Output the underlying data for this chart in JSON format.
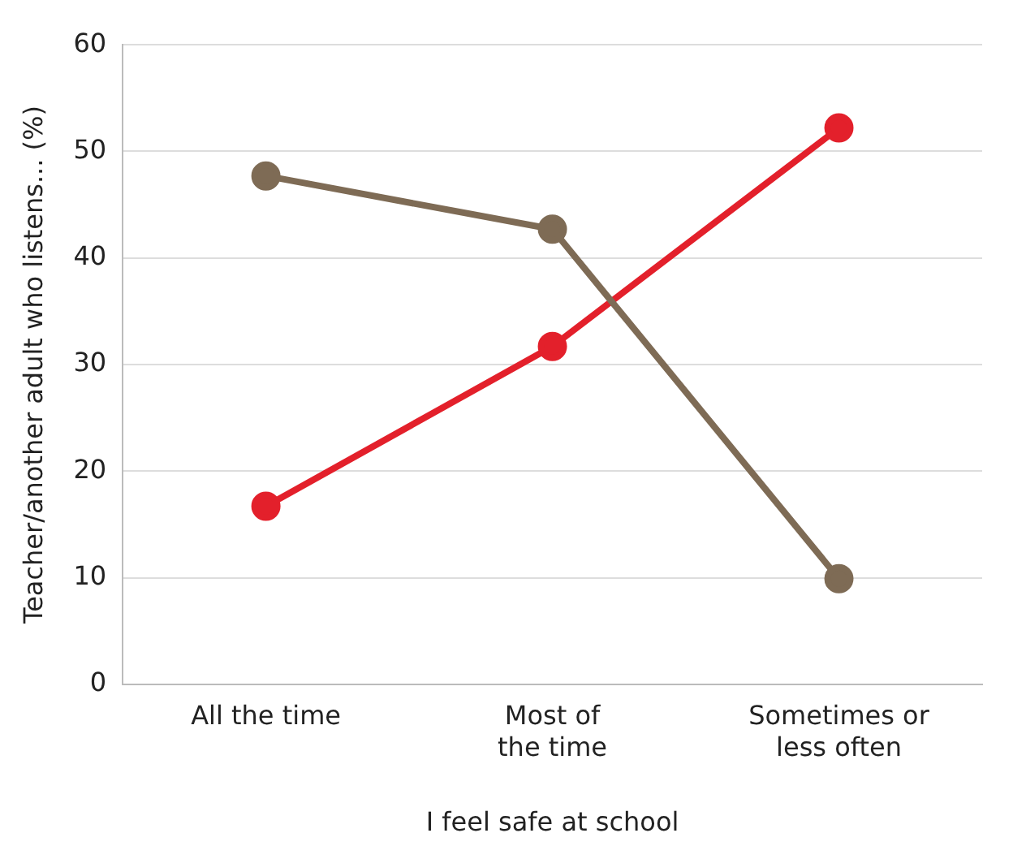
{
  "chart_data": {
    "type": "line",
    "xlabel": "I feel safe at school",
    "ylabel": "Teacher/another adult who listens... (%)",
    "categories": [
      "All the time",
      "Most of\nthe time",
      "Sometimes or\nless often"
    ],
    "series": [
      {
        "color": "#7e6b55",
        "values": [
          47.7,
          42.7,
          9.9
        ]
      },
      {
        "color": "#e3202b",
        "values": [
          16.7,
          31.7,
          52.2
        ]
      }
    ],
    "ylim": [
      0,
      60
    ],
    "yticks": [
      0,
      10,
      20,
      30,
      40,
      50,
      60
    ],
    "grid": "y",
    "legend": false,
    "marker": "circle",
    "line_style": "solid"
  }
}
